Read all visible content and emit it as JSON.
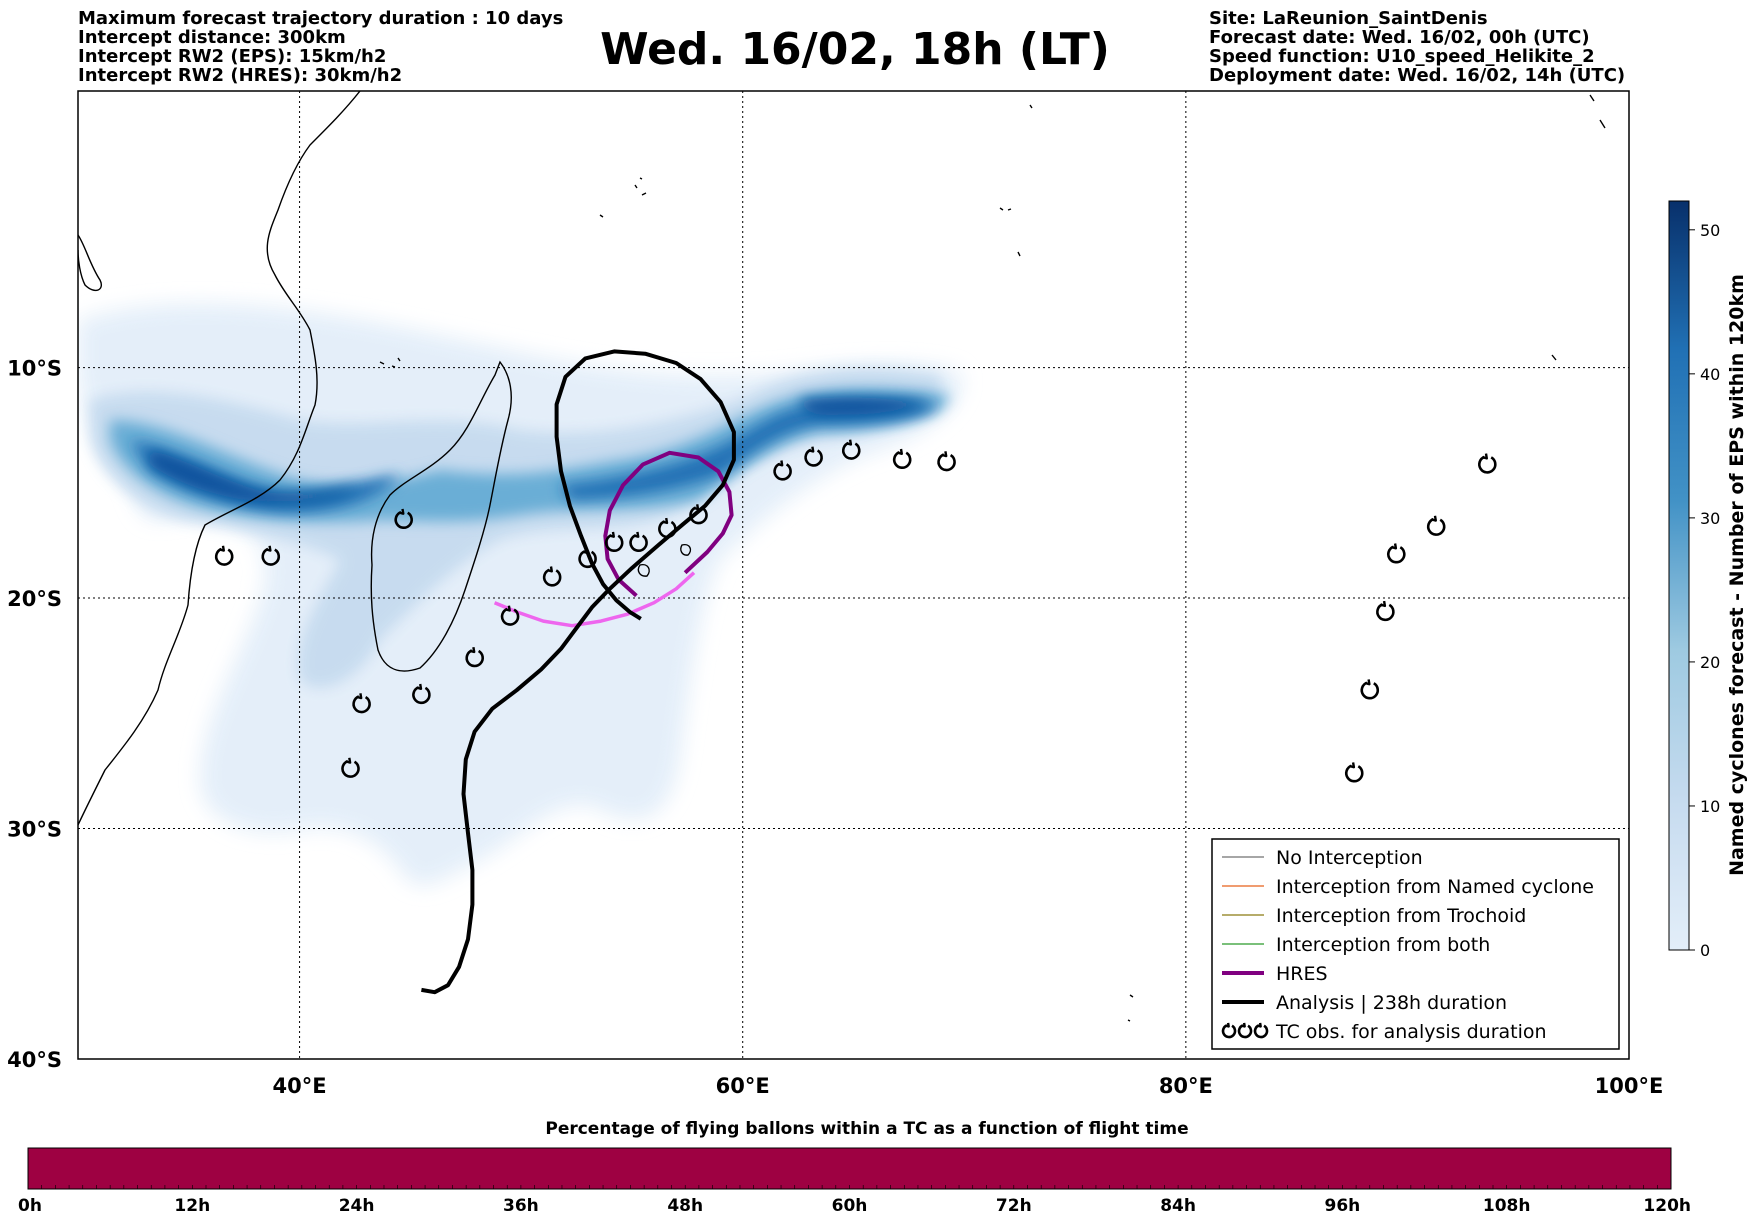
{
  "header": {
    "left": [
      "Maximum forecast trajectory duration : 10 days",
      "Intercept distance: 300km",
      "Intercept RW2 (EPS):  15km/h2",
      "Intercept RW2 (HRES): 30km/h2"
    ],
    "title": "Wed. 16/02, 18h (LT)",
    "right": [
      "Site: LaReunion_SaintDenis",
      "Forecast date: Wed. 16/02, 00h (UTC)",
      "Speed function: U10_speed_Helikite_2",
      "Deployment date: Wed. 16/02, 14h (UTC)"
    ]
  },
  "map": {
    "lon_range": [
      30,
      100
    ],
    "lat_range": [
      -40,
      2
    ],
    "x_ticks": [
      {
        "lon": 40,
        "label": "40°E"
      },
      {
        "lon": 60,
        "label": "60°E"
      },
      {
        "lon": 80,
        "label": "80°E"
      },
      {
        "lon": 100,
        "label": "100°E"
      }
    ],
    "y_ticks": [
      {
        "lat": -10,
        "label": "10°S"
      },
      {
        "lat": -20,
        "label": "20°S"
      },
      {
        "lat": -30,
        "label": "30°S"
      },
      {
        "lat": -40,
        "label": "40°S"
      }
    ],
    "tc_obs": [
      [
        36.6,
        -18.2
      ],
      [
        38.7,
        -18.2
      ],
      [
        44.7,
        -16.6
      ],
      [
        51.4,
        -19.1
      ],
      [
        53.0,
        -18.3
      ],
      [
        54.2,
        -17.6
      ],
      [
        55.3,
        -17.6
      ],
      [
        56.6,
        -17.0
      ],
      [
        58.0,
        -16.4
      ],
      [
        61.8,
        -14.5
      ],
      [
        63.2,
        -13.9
      ],
      [
        64.9,
        -13.6
      ],
      [
        67.2,
        -14.0
      ],
      [
        69.2,
        -14.1
      ],
      [
        49.5,
        -20.8
      ],
      [
        47.9,
        -22.6
      ],
      [
        45.5,
        -24.2
      ],
      [
        42.8,
        -24.6
      ],
      [
        42.3,
        -27.4
      ],
      [
        93.6,
        -14.2
      ],
      [
        91.3,
        -16.9
      ],
      [
        89.5,
        -18.1
      ],
      [
        89.0,
        -20.6
      ],
      [
        88.3,
        -24.0
      ],
      [
        87.6,
        -27.6
      ]
    ],
    "analysis_track": [
      [
        45.5,
        -37.0
      ],
      [
        46.1,
        -37.1
      ],
      [
        46.7,
        -36.8
      ],
      [
        47.2,
        -36.0
      ],
      [
        47.6,
        -34.8
      ],
      [
        47.8,
        -33.3
      ],
      [
        47.8,
        -31.8
      ],
      [
        47.6,
        -30.2
      ],
      [
        47.4,
        -28.5
      ],
      [
        47.5,
        -27.0
      ],
      [
        47.9,
        -25.8
      ],
      [
        48.7,
        -24.8
      ],
      [
        49.8,
        -24.0
      ],
      [
        50.9,
        -23.1
      ],
      [
        51.8,
        -22.2
      ],
      [
        52.5,
        -21.3
      ],
      [
        53.2,
        -20.4
      ],
      [
        54.0,
        -19.6
      ],
      [
        55.0,
        -18.7
      ],
      [
        56.2,
        -17.7
      ],
      [
        57.3,
        -16.8
      ],
      [
        58.3,
        -16.0
      ],
      [
        59.1,
        -15.1
      ],
      [
        59.6,
        -14.0
      ],
      [
        59.6,
        -12.8
      ],
      [
        59.0,
        -11.5
      ],
      [
        58.1,
        -10.5
      ],
      [
        57.0,
        -9.8
      ],
      [
        55.6,
        -9.4
      ],
      [
        54.2,
        -9.3
      ],
      [
        52.9,
        -9.6
      ],
      [
        52.0,
        -10.4
      ],
      [
        51.6,
        -11.6
      ],
      [
        51.6,
        -13.0
      ],
      [
        51.8,
        -14.5
      ],
      [
        52.2,
        -16.0
      ],
      [
        52.7,
        -17.3
      ],
      [
        53.2,
        -18.5
      ],
      [
        53.7,
        -19.4
      ],
      [
        54.3,
        -20.1
      ],
      [
        54.9,
        -20.6
      ],
      [
        55.4,
        -20.9
      ]
    ],
    "hres_track": [
      [
        57.4,
        -18.9
      ],
      [
        58.4,
        -18.0
      ],
      [
        59.1,
        -17.2
      ],
      [
        59.5,
        -16.4
      ],
      [
        59.4,
        -15.4
      ],
      [
        58.9,
        -14.5
      ],
      [
        58.0,
        -13.9
      ],
      [
        56.7,
        -13.7
      ],
      [
        55.5,
        -14.2
      ],
      [
        54.6,
        -15.1
      ],
      [
        54.0,
        -16.2
      ],
      [
        53.8,
        -17.3
      ],
      [
        53.9,
        -18.3
      ],
      [
        54.4,
        -19.2
      ],
      [
        55.2,
        -19.9
      ]
    ],
    "pink_track": [
      [
        48.8,
        -20.2
      ],
      [
        49.8,
        -20.6
      ],
      [
        51.0,
        -21.0
      ],
      [
        52.3,
        -21.2
      ],
      [
        53.6,
        -21.0
      ],
      [
        54.8,
        -20.7
      ],
      [
        56.0,
        -20.2
      ],
      [
        57.0,
        -19.6
      ],
      [
        57.8,
        -18.9
      ]
    ]
  },
  "chart_data": {
    "type": "heatmap",
    "variable": "Named cyclones forecast - Number of EPS within 120km",
    "colorbar_range": [
      0,
      52
    ],
    "colorbar_ticks": [
      0,
      10,
      20,
      30,
      40,
      50
    ],
    "core_band_lon": [
      36,
      70
    ],
    "core_band_lat": [
      -19,
      -13.5
    ]
  },
  "colorbar": {
    "label": "Named cyclones forecast - Number of EPS within 120km",
    "ticks": [
      "0",
      "10",
      "20",
      "30",
      "40",
      "50"
    ],
    "color_low": "#e3eef9",
    "color_high": "#08306b"
  },
  "legend": {
    "items": [
      {
        "label": "No Interception",
        "color": "#707070",
        "width": 1.2
      },
      {
        "label": "Interception from Named cyclone",
        "color": "#e8601a",
        "width": 1.2
      },
      {
        "label": "Interception from Trochoid",
        "color": "#8a7a10",
        "width": 1.2
      },
      {
        "label": "Interception from both",
        "color": "#2a9a2a",
        "width": 1.2
      },
      {
        "label": "HRES",
        "color": "#800080",
        "width": 4
      },
      {
        "label": "Analysis | 238h duration",
        "color": "#000000",
        "width": 4
      },
      {
        "label": "TC obs. for analysis duration",
        "color": "#000000",
        "width": 0,
        "symbol": "tc"
      }
    ]
  },
  "bottom_bar": {
    "title": "Percentage of flying ballons within a TC as a function of flight time",
    "ticks": [
      "0h",
      "12h",
      "24h",
      "36h",
      "48h",
      "60h",
      "72h",
      "84h",
      "96h",
      "108h",
      "120h"
    ],
    "fill_color": "#9e0142"
  },
  "colors": {
    "analysis": "#000000",
    "hres": "#800080",
    "pink": "#ee66ee"
  }
}
